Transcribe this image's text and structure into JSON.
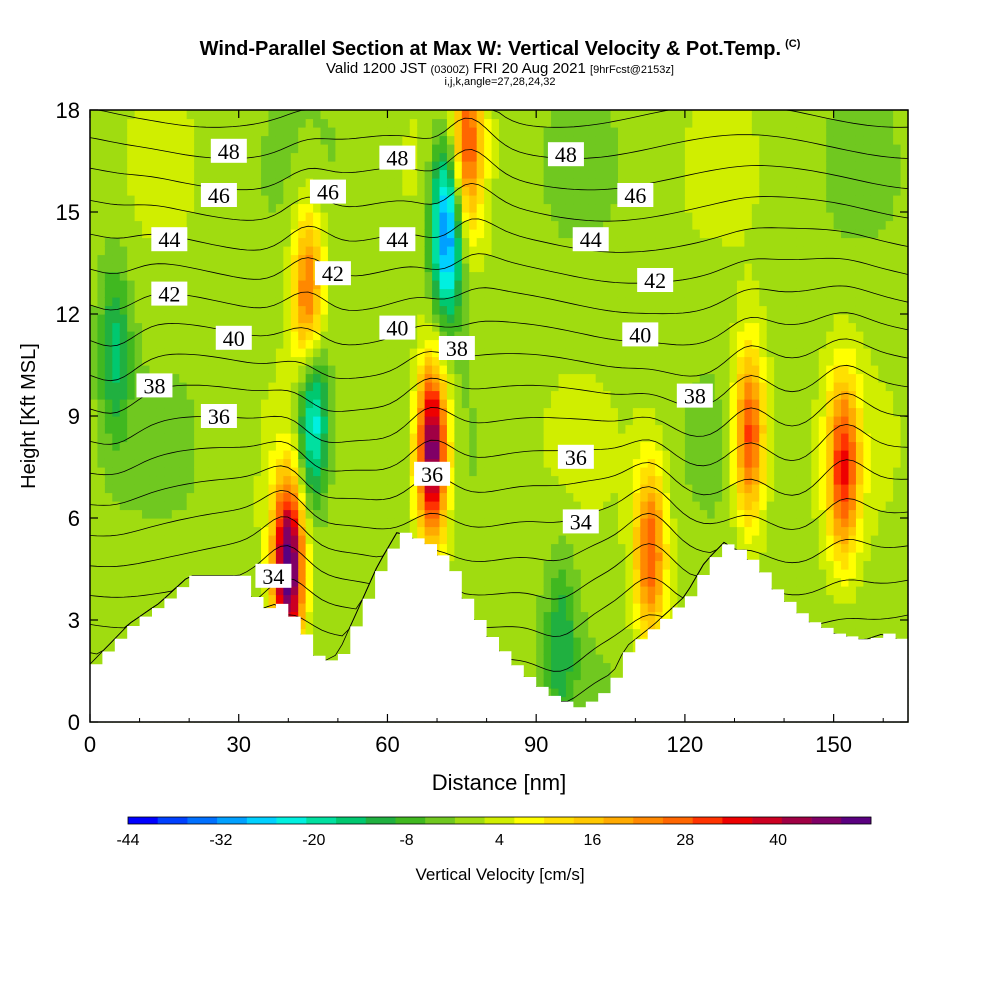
{
  "header": {
    "title": "Wind-Parallel Section at Max W: Vertical Velocity & Pot.Temp.",
    "title_units": "(C)",
    "valid_prefix": "Valid 1200 JST",
    "valid_utc": "(0300Z)",
    "valid_date": "FRI 20 Aug 2021",
    "forecast": "[9hrFcst@2153z]",
    "grid_info": "i,j,k,angle=27,28,24,32"
  },
  "colors": {
    "background": "#ffffff",
    "terrain": "#ffffff",
    "contour": "#000000",
    "palette": [
      "#0000ff",
      "#0040ff",
      "#0070ff",
      "#00a0ff",
      "#00d0ff",
      "#00f0e0",
      "#00e0a0",
      "#00c870",
      "#20b040",
      "#40b820",
      "#70c820",
      "#a0dc10",
      "#d0ee00",
      "#ffff00",
      "#ffe000",
      "#ffc800",
      "#ffaa00",
      "#ff8800",
      "#ff6600",
      "#ff3300",
      "#ee0000",
      "#cc0022",
      "#a00044",
      "#800066",
      "#5a0080"
    ]
  },
  "chart_data": {
    "type": "heatmap",
    "title": "Wind-Parallel Section at Max W: Vertical Velocity & Pot.Temp.",
    "xlabel": "Distance [nm]",
    "ylabel": "Height [Kft MSL]",
    "xlim": [
      0,
      165
    ],
    "ylim": [
      0,
      18
    ],
    "x_ticks": [
      0,
      30,
      60,
      90,
      120,
      150
    ],
    "y_ticks": [
      0,
      3,
      6,
      9,
      12,
      15,
      18
    ],
    "colorbar": {
      "label": "Vertical Velocity [cm/s]",
      "min": -44,
      "max": 52,
      "step": 4,
      "tick_labels": [
        -44,
        -32,
        -20,
        -8,
        4,
        16,
        28,
        40
      ]
    },
    "terrain_profile": [
      [
        0,
        1.7
      ],
      [
        4,
        2.3
      ],
      [
        8,
        2.9
      ],
      [
        14,
        3.5
      ],
      [
        20,
        4.3
      ],
      [
        30,
        4.3
      ],
      [
        34,
        3.3
      ],
      [
        38,
        3.5
      ],
      [
        42,
        2.7
      ],
      [
        46,
        1.7
      ],
      [
        50,
        2.0
      ],
      [
        54,
        3.3
      ],
      [
        58,
        4.6
      ],
      [
        62,
        5.6
      ],
      [
        68,
        5.2
      ],
      [
        72,
        4.6
      ],
      [
        76,
        3.3
      ],
      [
        80,
        2.5
      ],
      [
        86,
        1.5
      ],
      [
        92,
        0.8
      ],
      [
        98,
        0.4
      ],
      [
        104,
        1.0
      ],
      [
        108,
        2.2
      ],
      [
        114,
        2.9
      ],
      [
        120,
        3.7
      ],
      [
        124,
        4.7
      ],
      [
        128,
        5.3
      ],
      [
        134,
        4.6
      ],
      [
        138,
        3.8
      ],
      [
        144,
        3.0
      ],
      [
        150,
        2.6
      ],
      [
        156,
        2.4
      ],
      [
        160,
        2.6
      ],
      [
        165,
        2.3
      ]
    ],
    "updrafts": [
      {
        "x": 40,
        "y": 4.5,
        "w": 55
      },
      {
        "x": 44,
        "y": 12.5,
        "w": 30
      },
      {
        "x": 69,
        "y": 8.0,
        "w": 52
      },
      {
        "x": 76,
        "y": 17.0,
        "w": 30
      },
      {
        "x": 113,
        "y": 5.0,
        "w": 30
      },
      {
        "x": 133,
        "y": 8.5,
        "w": 33
      },
      {
        "x": 152,
        "y": 7.5,
        "w": 33
      }
    ],
    "downdrafts": [
      {
        "x": 45,
        "y": 9.0,
        "w": -30
      },
      {
        "x": 72,
        "y": 14.5,
        "w": -38
      },
      {
        "x": 95,
        "y": 2.5,
        "w": -12
      },
      {
        "x": 5,
        "y": 11.0,
        "w": -15
      }
    ],
    "theta_labels": [
      {
        "text": "48",
        "x": 28,
        "y": 16.8
      },
      {
        "text": "48",
        "x": 62,
        "y": 16.6
      },
      {
        "text": "48",
        "x": 96,
        "y": 16.7
      },
      {
        "text": "46",
        "x": 26,
        "y": 15.5
      },
      {
        "text": "46",
        "x": 48,
        "y": 15.6
      },
      {
        "text": "46",
        "x": 110,
        "y": 15.5
      },
      {
        "text": "44",
        "x": 16,
        "y": 14.2
      },
      {
        "text": "44",
        "x": 62,
        "y": 14.2
      },
      {
        "text": "44",
        "x": 101,
        "y": 14.2
      },
      {
        "text": "42",
        "x": 16,
        "y": 12.6
      },
      {
        "text": "42",
        "x": 49,
        "y": 13.2
      },
      {
        "text": "42",
        "x": 114,
        "y": 13.0
      },
      {
        "text": "40",
        "x": 29,
        "y": 11.3
      },
      {
        "text": "40",
        "x": 62,
        "y": 11.6
      },
      {
        "text": "40",
        "x": 111,
        "y": 11.4
      },
      {
        "text": "38",
        "x": 13,
        "y": 9.9
      },
      {
        "text": "38",
        "x": 74,
        "y": 11.0
      },
      {
        "text": "38",
        "x": 122,
        "y": 9.6
      },
      {
        "text": "36",
        "x": 26,
        "y": 9.0
      },
      {
        "text": "36",
        "x": 69,
        "y": 7.3
      },
      {
        "text": "36",
        "x": 98,
        "y": 7.8
      },
      {
        "text": "34",
        "x": 37,
        "y": 4.3
      },
      {
        "text": "34",
        "x": 99,
        "y": 5.9
      }
    ]
  }
}
